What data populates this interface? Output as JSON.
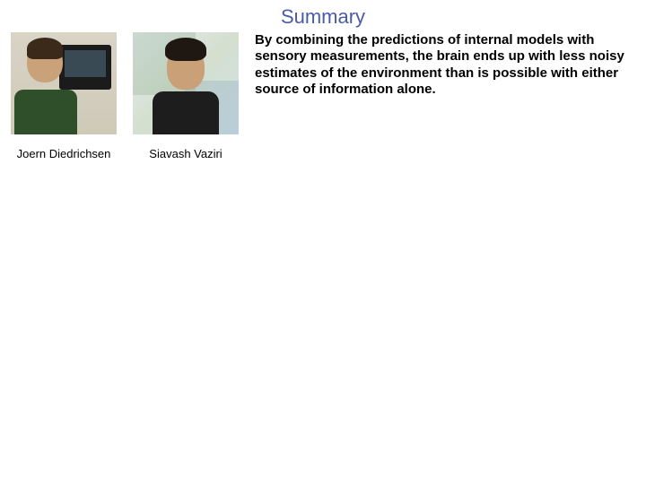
{
  "title": "Summary",
  "title_color": "#4a5ba8",
  "background_color": "#ffffff",
  "title_fontsize": 22,
  "paragraph_fontsize": 15,
  "caption_fontsize": 13,
  "people": [
    {
      "name": "Joern Diedrichsen",
      "photo_alt": "photo-joern"
    },
    {
      "name": "Siavash Vaziri",
      "photo_alt": "photo-siavash"
    }
  ],
  "paragraph": "By combining the predictions of internal models with sensory measurements, the brain ends up with less noisy estimates of the environment than is possible with either source of information alone."
}
